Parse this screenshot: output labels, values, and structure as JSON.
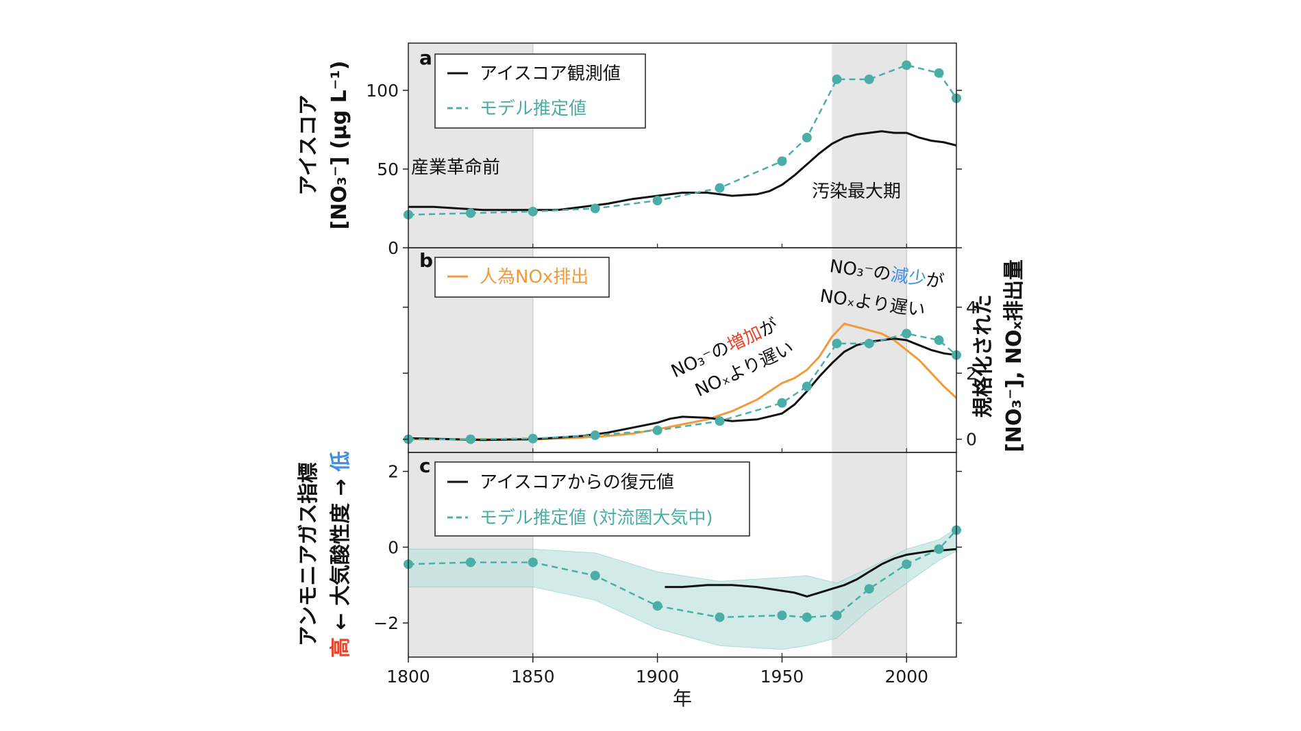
{
  "colors": {
    "observed": "#111111",
    "model": "#4aaea6",
    "nox": "#f29a3a",
    "shade": "#e6e6e6",
    "high": "#e8452c",
    "low": "#3f8fe8",
    "band": "#bfe3de"
  },
  "x_axis": {
    "label": "年",
    "ticks": [
      "1800",
      "1850",
      "1900",
      "1950",
      "2000"
    ]
  },
  "shaded_periods": {
    "preindustrial_label": "産業革命前",
    "peak_label": "汚染最大期"
  },
  "panel_a": {
    "label": "a",
    "ylabel_1": "アイスコア",
    "ylabel_2": "[NO₃⁻] (μg L⁻¹)",
    "yticks": [
      "0",
      "50",
      "100"
    ],
    "legend": {
      "observed": "アイスコア観測値",
      "model": "モデル推定値"
    }
  },
  "panel_b": {
    "label": "b",
    "ylabel_1": "規格化された",
    "ylabel_2": "[NO₃⁻], NOₓ排出量",
    "yticks": [
      "0",
      "2",
      "4"
    ],
    "legend": {
      "nox": "人為NOx排出"
    },
    "annotation_increase": {
      "part1": "NO₃⁻の",
      "part2": "増加",
      "part3": "が",
      "line2": "NOₓより遅い"
    },
    "annotation_decrease": {
      "part1": "NO₃⁻の",
      "part2": "減少",
      "part3": "が",
      "line2": "NOₓより遅い"
    }
  },
  "panel_c": {
    "label": "c",
    "ylabel_1": "アンモニアガス指標",
    "ylabel_high": "高",
    "ylabel_mid": " ← 大気酸性度 → ",
    "ylabel_low": "低",
    "yticks": [
      "−2",
      "0",
      "2"
    ],
    "legend": {
      "observed": "アイスコアからの復元値",
      "model": "モデル推定値 (対流圏大気中)"
    }
  },
  "chart_data": [
    {
      "type": "line",
      "panel": "a",
      "xlim": [
        1800,
        2020
      ],
      "ylim": [
        0,
        130
      ],
      "shaded": [
        [
          1800,
          1850
        ],
        [
          1970,
          2000
        ]
      ],
      "series": [
        {
          "name": "アイスコア観測値",
          "x": [
            1800,
            1810,
            1820,
            1830,
            1840,
            1850,
            1860,
            1870,
            1880,
            1890,
            1900,
            1905,
            1910,
            1915,
            1920,
            1925,
            1930,
            1940,
            1945,
            1950,
            1955,
            1960,
            1965,
            1970,
            1975,
            1980,
            1985,
            1990,
            1995,
            2000,
            2005,
            2010,
            2015,
            2020
          ],
          "y": [
            26,
            26,
            25,
            24,
            24,
            24,
            24,
            26,
            28,
            31,
            33,
            34,
            35,
            35,
            35,
            34,
            33,
            34,
            36,
            40,
            46,
            53,
            60,
            66,
            70,
            72,
            73,
            74,
            73,
            73,
            70,
            68,
            67,
            65
          ]
        },
        {
          "name": "モデル推定値",
          "x": [
            1800,
            1825,
            1850,
            1875,
            1900,
            1925,
            1950,
            1960,
            1972,
            1985,
            2000,
            2013,
            2020
          ],
          "y": [
            21,
            22,
            23,
            25,
            30,
            38,
            55,
            70,
            107,
            107,
            116,
            111,
            95
          ]
        }
      ]
    },
    {
      "type": "line",
      "panel": "b",
      "xlim": [
        1800,
        2020
      ],
      "ylim": [
        -0.4,
        5.8
      ],
      "shaded": [
        [
          1800,
          1850
        ],
        [
          1970,
          2000
        ]
      ],
      "series": [
        {
          "name": "人為NOx排出",
          "x": [
            1800,
            1850,
            1860,
            1870,
            1880,
            1890,
            1900,
            1910,
            1920,
            1930,
            1940,
            1945,
            1950,
            1955,
            1960,
            1965,
            1970,
            1975,
            1980,
            1985,
            1990,
            1995,
            2000,
            2005,
            2010,
            2015,
            2020
          ],
          "y": [
            0,
            0,
            0.02,
            0.05,
            0.1,
            0.17,
            0.3,
            0.45,
            0.6,
            0.85,
            1.2,
            1.45,
            1.7,
            1.85,
            2.1,
            2.5,
            3.1,
            3.5,
            3.4,
            3.3,
            3.2,
            3.0,
            2.7,
            2.4,
            2.0,
            1.6,
            1.25
          ]
        },
        {
          "name": "",
          "x": [
            1800,
            1830,
            1850,
            1870,
            1880,
            1890,
            1900,
            1905,
            1910,
            1920,
            1930,
            1940,
            1950,
            1955,
            1960,
            1965,
            1970,
            1975,
            1980,
            1985,
            1990,
            1995,
            2000,
            2005,
            2010,
            2015,
            2020
          ],
          "y": [
            0.03,
            -0.02,
            0,
            0.1,
            0.2,
            0.35,
            0.5,
            0.62,
            0.68,
            0.65,
            0.55,
            0.6,
            0.78,
            1.05,
            1.45,
            1.9,
            2.3,
            2.65,
            2.85,
            2.95,
            3.0,
            3.05,
            3.0,
            2.85,
            2.7,
            2.6,
            2.55
          ]
        },
        {
          "name": "モデル推定値",
          "x": [
            1800,
            1825,
            1850,
            1875,
            1900,
            1925,
            1950,
            1960,
            1972,
            1985,
            2000,
            2013,
            2020
          ],
          "y": [
            0,
            0,
            0.02,
            0.12,
            0.27,
            0.55,
            1.1,
            1.6,
            2.9,
            2.9,
            3.2,
            3.0,
            2.55
          ]
        }
      ]
    },
    {
      "type": "line",
      "panel": "c",
      "xlim": [
        1800,
        2020
      ],
      "ylim": [
        -2.9,
        2.5
      ],
      "shaded": [
        [
          1800,
          1850
        ],
        [
          1970,
          2000
        ]
      ],
      "series": [
        {
          "name": "アイスコアからの復元値",
          "x": [
            1903,
            1910,
            1920,
            1930,
            1940,
            1950,
            1955,
            1960,
            1965,
            1970,
            1975,
            1980,
            1985,
            1990,
            1995,
            2000,
            2005,
            2010,
            2015,
            2020
          ],
          "y": [
            -1.05,
            -1.05,
            -1.0,
            -1.0,
            -1.05,
            -1.15,
            -1.2,
            -1.3,
            -1.2,
            -1.1,
            -1.0,
            -0.85,
            -0.65,
            -0.45,
            -0.3,
            -0.2,
            -0.15,
            -0.1,
            -0.08,
            -0.05
          ]
        },
        {
          "name": "モデル推定値 (対流圏大気中)",
          "x": [
            1800,
            1825,
            1850,
            1875,
            1900,
            1925,
            1950,
            1960,
            1972,
            1985,
            2000,
            2013,
            2020
          ],
          "y": [
            -0.45,
            -0.4,
            -0.4,
            -0.75,
            -1.55,
            -1.85,
            -1.8,
            -1.85,
            -1.8,
            -1.1,
            -0.45,
            -0.05,
            0.45
          ],
          "band_upper": [
            -0.05,
            -0.05,
            -0.05,
            -0.15,
            -0.65,
            -0.9,
            -0.8,
            -0.75,
            -0.95,
            -0.55,
            -0.05,
            0.2,
            0.5
          ],
          "band_lower": [
            -1.05,
            -1.05,
            -1.05,
            -1.4,
            -2.15,
            -2.6,
            -2.7,
            -2.6,
            -2.4,
            -1.65,
            -0.95,
            -0.35,
            -0.1
          ]
        }
      ]
    }
  ]
}
